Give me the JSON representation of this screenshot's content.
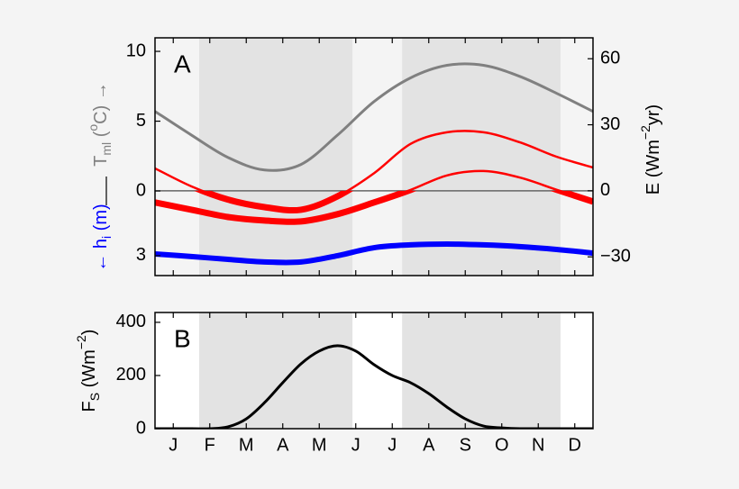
{
  "chart_data": [
    {
      "type": "line",
      "panel_label": "A",
      "x": [
        0,
        1,
        2,
        3,
        4,
        5,
        6,
        7,
        8,
        9,
        10,
        11,
        12
      ],
      "xlim": [
        0,
        12
      ],
      "xticks": [
        0.5,
        1.5,
        2.5,
        3.5,
        4.5,
        5.5,
        6.5,
        7.5,
        8.5,
        9.5,
        10.5,
        11.5
      ],
      "ylim": [
        -6.06,
        10.97
      ],
      "yticks": [
        0,
        5,
        10
      ],
      "y2lim": [
        -38.5,
        69.5
      ],
      "y2ticks": [
        {
          "value": -30,
          "label": "−30"
        },
        0,
        30,
        60
      ],
      "hlim": [
        3.92,
        -7.08
      ],
      "hticks": [
        3
      ],
      "ylabel": {
        "color": "#808080",
        "parts": [
          {
            "text": "T"
          },
          {
            "text": "ml",
            "shift": "sub"
          },
          {
            "text": " ("
          },
          {
            "text": "o",
            "shift": "super"
          },
          {
            "text": "C) →"
          }
        ]
      },
      "hlabel": {
        "color": "#0000ff",
        "parts": [
          {
            "text": "← h"
          },
          {
            "text": "i",
            "shift": "sub"
          },
          {
            "text": " (m)"
          }
        ]
      },
      "y2label": {
        "color": "#000000",
        "parts": [
          {
            "text": "E (Wm"
          },
          {
            "text": "−2",
            "shift": "super"
          },
          {
            "text": "yr)"
          }
        ]
      },
      "shaded_spans": [
        [
          1.21,
          5.41
        ],
        [
          6.77,
          11.11
        ]
      ],
      "zero_line": true,
      "series": [
        {
          "color": "#808080",
          "axis": "y",
          "width": 3,
          "values": [
            5.7,
            4.0,
            2.4,
            1.5,
            1.9,
            4.0,
            6.4,
            8.1,
            9.0,
            9.0,
            8.2,
            7.0,
            5.7
          ]
        },
        {
          "color": "#ff0000",
          "axis": "y2",
          "width": 2.5,
          "width_below_zero": 7,
          "values": [
            10.2,
            2,
            -4,
            -7.4,
            -8.6,
            -2.5,
            8,
            21.3,
            26.6,
            26.6,
            22,
            15.5,
            10.6
          ]
        },
        {
          "color": "#ff0000",
          "axis": "y2",
          "width": 2.5,
          "width_below_zero": 7,
          "values": [
            -5.3,
            -8.6,
            -11.9,
            -13.5,
            -13.9,
            -10.6,
            -5.3,
            0.4,
            7,
            9,
            6,
            0.5,
            -4.9
          ]
        },
        {
          "color": "#0000ff",
          "axis": "h",
          "width": 6,
          "values": [
            2.92,
            3.04,
            3.17,
            3.29,
            3.29,
            3.0,
            2.63,
            2.5,
            2.46,
            2.5,
            2.58,
            2.71,
            2.88
          ]
        }
      ]
    },
    {
      "type": "line",
      "panel_label": "B",
      "x": [
        0,
        1,
        1.5,
        2,
        2.5,
        3,
        3.5,
        4,
        4.5,
        5,
        5.5,
        6,
        6.5,
        7,
        7.5,
        8,
        8.5,
        9,
        9.5,
        10,
        11,
        12
      ],
      "xlim": [
        0,
        12
      ],
      "xticks": [
        {
          "value": 0.5,
          "label": "J"
        },
        {
          "value": 1.5,
          "label": "F"
        },
        {
          "value": 2.5,
          "label": "M"
        },
        {
          "value": 3.5,
          "label": "A"
        },
        {
          "value": 4.5,
          "label": "M"
        },
        {
          "value": 5.5,
          "label": "J"
        },
        {
          "value": 6.5,
          "label": "J"
        },
        {
          "value": 7.5,
          "label": "A"
        },
        {
          "value": 8.5,
          "label": "S"
        },
        {
          "value": 9.5,
          "label": "O"
        },
        {
          "value": 10.5,
          "label": "N"
        },
        {
          "value": 11.5,
          "label": "D"
        }
      ],
      "ylim": [
        0,
        437
      ],
      "yticks": [
        0,
        200,
        400
      ],
      "ylabel": {
        "color": "#000000",
        "parts": [
          {
            "text": "F"
          },
          {
            "text": "S",
            "shift": "sub"
          },
          {
            "text": " (Wm"
          },
          {
            "text": "−2",
            "shift": "super"
          },
          {
            "text": ")"
          }
        ]
      },
      "shaded_spans": [
        [
          1.21,
          5.41
        ],
        [
          6.77,
          11.11
        ]
      ],
      "series": [
        {
          "color": "#000000",
          "axis": "y",
          "width": 3,
          "values": [
            0,
            0,
            0,
            7,
            37,
            98,
            173,
            244,
            292,
            312,
            292,
            241,
            200,
            173,
            132,
            81,
            37,
            10,
            3,
            0,
            0,
            0
          ]
        }
      ]
    }
  ]
}
